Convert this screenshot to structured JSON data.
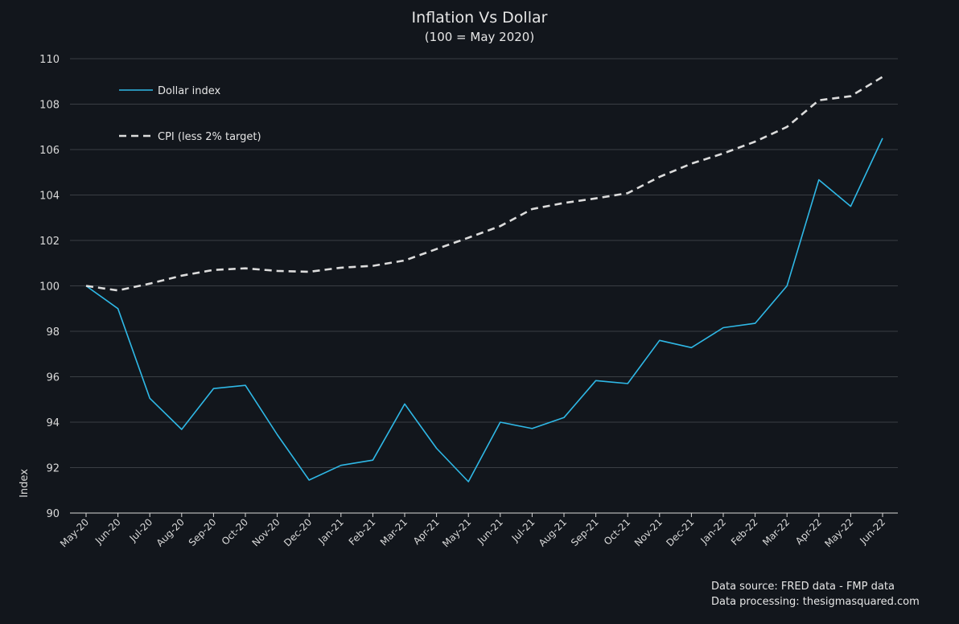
{
  "chart_data": {
    "type": "line",
    "title": "Inflation Vs Dollar",
    "subtitle": "(100 = May 2020)",
    "xlabel": "",
    "ylabel": "Index",
    "ylim": [
      90,
      110
    ],
    "yticks": [
      90,
      92,
      94,
      96,
      98,
      100,
      102,
      104,
      106,
      108,
      110
    ],
    "grid": true,
    "legend_position": "top-left",
    "categories": [
      "May-20",
      "Jun-20",
      "Jul-20",
      "Aug-20",
      "Sep-20",
      "Oct-20",
      "Nov-20",
      "Dec-20",
      "Jan-21",
      "Feb-21",
      "Mar-21",
      "Apr-21",
      "May-21",
      "Jun-21",
      "Jul-21",
      "Aug-21",
      "Sep-21",
      "Oct-21",
      "Nov-21",
      "Dec-21",
      "Jan-22",
      "Feb-22",
      "Mar-22",
      "Apr-22",
      "May-22",
      "Jun-22"
    ],
    "series": [
      {
        "name": "Dollar index",
        "style": "solid",
        "color": "#2fb8e6",
        "values": [
          100.0,
          99.0,
          95.05,
          93.68,
          95.48,
          95.62,
          93.45,
          91.45,
          92.1,
          92.33,
          94.8,
          92.85,
          91.38,
          94.0,
          93.72,
          94.2,
          95.83,
          95.7,
          97.6,
          97.28,
          98.16,
          98.35,
          100.0,
          104.67,
          103.5,
          106.5
        ]
      },
      {
        "name": "CPI (less 2% target)",
        "style": "dashed",
        "color": "#dcdcdc",
        "values": [
          100.0,
          99.8,
          100.1,
          100.45,
          100.7,
          100.77,
          100.66,
          100.62,
          100.8,
          100.88,
          101.12,
          101.62,
          102.12,
          102.63,
          103.38,
          103.65,
          103.85,
          104.08,
          104.8,
          105.38,
          105.83,
          106.35,
          107.0,
          108.17,
          108.35,
          109.2
        ]
      }
    ]
  },
  "credits": {
    "line1": "Data source: FRED data - FMP data",
    "line2": "Data processing: thesigmasquared.com"
  },
  "colors": {
    "background": "#12161c",
    "grid": "#3a3f44",
    "text": "#e6e6e6"
  }
}
